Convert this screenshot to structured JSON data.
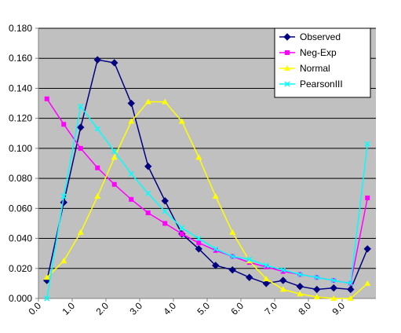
{
  "chart_data": {
    "type": "line",
    "title": "",
    "xlabel": "",
    "ylabel": "",
    "x": [
      0.25,
      0.75,
      1.25,
      1.75,
      2.25,
      2.75,
      3.25,
      3.75,
      4.25,
      4.75,
      5.25,
      5.75,
      6.25,
      6.75,
      7.25,
      7.75,
      8.25,
      8.75,
      9.25,
      9.75
    ],
    "xlim": [
      0.0,
      10.0
    ],
    "ylim": [
      0.0,
      0.18
    ],
    "x_ticks": [
      "0.0",
      "1.0",
      "2.0",
      "3.0",
      "4.0",
      "5.0",
      "6.0",
      "7.0",
      "8.0",
      "9.0"
    ],
    "x_tick_values": [
      0.0,
      1.0,
      2.0,
      3.0,
      4.0,
      5.0,
      6.0,
      7.0,
      8.0,
      9.0
    ],
    "y_ticks": [
      "0.000",
      "0.020",
      "0.040",
      "0.060",
      "0.080",
      "0.100",
      "0.120",
      "0.140",
      "0.160",
      "0.180"
    ],
    "y_tick_values": [
      0.0,
      0.02,
      0.04,
      0.06,
      0.08,
      0.1,
      0.12,
      0.14,
      0.16,
      0.18
    ],
    "grid": true,
    "legend_position": "top-right",
    "series": [
      {
        "name": "Observed",
        "color": "#000080",
        "marker": "diamond",
        "values": [
          0.012,
          0.064,
          0.114,
          0.159,
          0.157,
          0.13,
          0.088,
          0.065,
          0.043,
          0.033,
          0.022,
          0.019,
          0.014,
          0.01,
          0.012,
          0.008,
          0.006,
          0.007,
          0.006,
          0.033
        ]
      },
      {
        "name": "Neg-Exp",
        "color": "#ff00ff",
        "marker": "square",
        "values": [
          0.133,
          0.116,
          0.1,
          0.087,
          0.076,
          0.066,
          0.057,
          0.05,
          0.043,
          0.037,
          0.032,
          0.028,
          0.024,
          0.021,
          0.018,
          0.016,
          0.014,
          0.012,
          0.01,
          0.067
        ]
      },
      {
        "name": "Normal",
        "color": "#ffff00",
        "marker": "triangle",
        "values": [
          0.014,
          0.025,
          0.044,
          0.068,
          0.094,
          0.118,
          0.131,
          0.131,
          0.118,
          0.094,
          0.068,
          0.044,
          0.025,
          0.013,
          0.006,
          0.003,
          0.001,
          0.0,
          0.0,
          0.01
        ]
      },
      {
        "name": "PearsonIII",
        "color": "#00ffff",
        "marker": "x",
        "values": [
          0.0,
          0.068,
          0.128,
          0.113,
          0.098,
          0.083,
          0.07,
          0.058,
          0.047,
          0.04,
          0.033,
          0.028,
          0.026,
          0.022,
          0.019,
          0.016,
          0.014,
          0.012,
          0.01,
          0.103
        ]
      }
    ]
  },
  "colors": {
    "plot_background": "#c0c0c0",
    "gridline": "#000000",
    "axis": "#808080",
    "legend_background": "#ffffff"
  }
}
